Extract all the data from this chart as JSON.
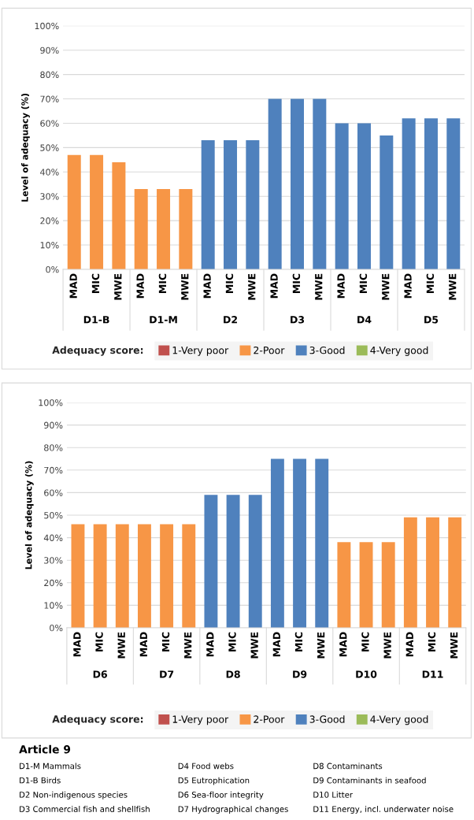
{
  "chart_data": [
    {
      "type": "bar",
      "ylabel": "Level of adequacy (%)",
      "grid": "y",
      "legend": "bottom",
      "legend_title": "Adequacy score:",
      "categories": [
        "MAD",
        "MIC",
        "MWE",
        "MAD",
        "MIC",
        "MWE",
        "MAD",
        "MIC",
        "MWE",
        "MAD",
        "MIC",
        "MWE",
        "MAD",
        "MIC",
        "MWE",
        "MAD",
        "MIC",
        "MWE"
      ],
      "ylim": [
        0,
        100
      ],
      "yticks": [
        {
          "value": 0,
          "label": "0%"
        },
        {
          "value": 10,
          "label": "10%"
        },
        {
          "value": 20,
          "label": "20%"
        },
        {
          "value": 30,
          "label": "30%"
        },
        {
          "value": 40,
          "label": "40%"
        },
        {
          "value": 50,
          "label": "50%"
        },
        {
          "value": 60,
          "label": "60%"
        },
        {
          "value": 70,
          "label": "70%"
        },
        {
          "value": 80,
          "label": "80%"
        },
        {
          "value": 90,
          "label": "90%"
        },
        {
          "value": 100,
          "label": "100%"
        }
      ],
      "series": [
        {
          "name": "1-Very poor",
          "color": "#c0504d",
          "values": [
            null,
            null,
            null,
            null,
            null,
            null,
            null,
            null,
            null,
            null,
            null,
            null,
            null,
            null,
            null,
            null,
            null,
            null
          ]
        },
        {
          "name": "2-Poor",
          "color": "#f79646",
          "values": [
            47,
            47,
            44,
            33,
            33,
            33,
            null,
            null,
            null,
            null,
            null,
            null,
            null,
            null,
            null,
            null,
            null,
            null
          ]
        },
        {
          "name": "3-Good",
          "color": "#4f81bd",
          "values": [
            null,
            null,
            null,
            null,
            null,
            null,
            53,
            53,
            53,
            70,
            70,
            70,
            60,
            60,
            55,
            62,
            62,
            62
          ]
        },
        {
          "name": "4-Very good",
          "color": "#9bbb59",
          "values": [
            null,
            null,
            null,
            null,
            null,
            null,
            null,
            null,
            null,
            null,
            null,
            null,
            null,
            null,
            null,
            null,
            null,
            null
          ]
        }
      ],
      "annotations": [
        "D1-B",
        "D1-M",
        "D2",
        "D3",
        "D4",
        "D5"
      ]
    },
    {
      "type": "bar",
      "ylabel": "Level of adequacy (%)",
      "grid": "y",
      "legend": "bottom",
      "legend_title": "Adequacy score:",
      "categories": [
        "MAD",
        "MIC",
        "MWE",
        "MAD",
        "MIC",
        "MWE",
        "MAD",
        "MIC",
        "MWE",
        "MAD",
        "MIC",
        "MWE",
        "MAD",
        "MIC",
        "MWE",
        "MAD",
        "MIC",
        "MWE"
      ],
      "ylim": [
        0,
        100
      ],
      "yticks": [
        {
          "value": 0,
          "label": "0%"
        },
        {
          "value": 10,
          "label": "10%"
        },
        {
          "value": 20,
          "label": "20%"
        },
        {
          "value": 30,
          "label": "30%"
        },
        {
          "value": 40,
          "label": "40%"
        },
        {
          "value": 50,
          "label": "50%"
        },
        {
          "value": 60,
          "label": "60%"
        },
        {
          "value": 70,
          "label": "70%"
        },
        {
          "value": 80,
          "label": "80%"
        },
        {
          "value": 90,
          "label": "90%"
        },
        {
          "value": 100,
          "label": "100%"
        }
      ],
      "series": [
        {
          "name": "1-Very poor",
          "color": "#c0504d",
          "values": [
            null,
            null,
            null,
            null,
            null,
            null,
            null,
            null,
            null,
            null,
            null,
            null,
            null,
            null,
            null,
            null,
            null,
            null
          ]
        },
        {
          "name": "2-Poor",
          "color": "#f79646",
          "values": [
            46,
            46,
            46,
            46,
            46,
            46,
            null,
            null,
            null,
            null,
            null,
            null,
            38,
            38,
            38,
            49,
            49,
            49
          ]
        },
        {
          "name": "3-Good",
          "color": "#4f81bd",
          "values": [
            null,
            null,
            null,
            null,
            null,
            null,
            59,
            59,
            59,
            75,
            75,
            75,
            null,
            null,
            null,
            null,
            null,
            null
          ]
        },
        {
          "name": "4-Very good",
          "color": "#9bbb59",
          "values": [
            null,
            null,
            null,
            null,
            null,
            null,
            null,
            null,
            null,
            null,
            null,
            null,
            null,
            null,
            null,
            null,
            null,
            null
          ]
        }
      ],
      "annotations": [
        "D6",
        "D7",
        "D8",
        "D9",
        "D10",
        "D11",
        "Article 9",
        "D1-M Mammals",
        "D1-B Birds",
        "D2 Non-indigenous species",
        "D3 Commercial fish and shellfish",
        "D4 Food webs",
        "D5 Eutrophication",
        "D6 Sea-floor integrity",
        "D7 Hydrographical changes",
        "D8 Contaminants",
        "D9 Contaminants in seafood",
        "D10 Litter",
        "D11 Energy, incl. underwater noise"
      ]
    }
  ]
}
